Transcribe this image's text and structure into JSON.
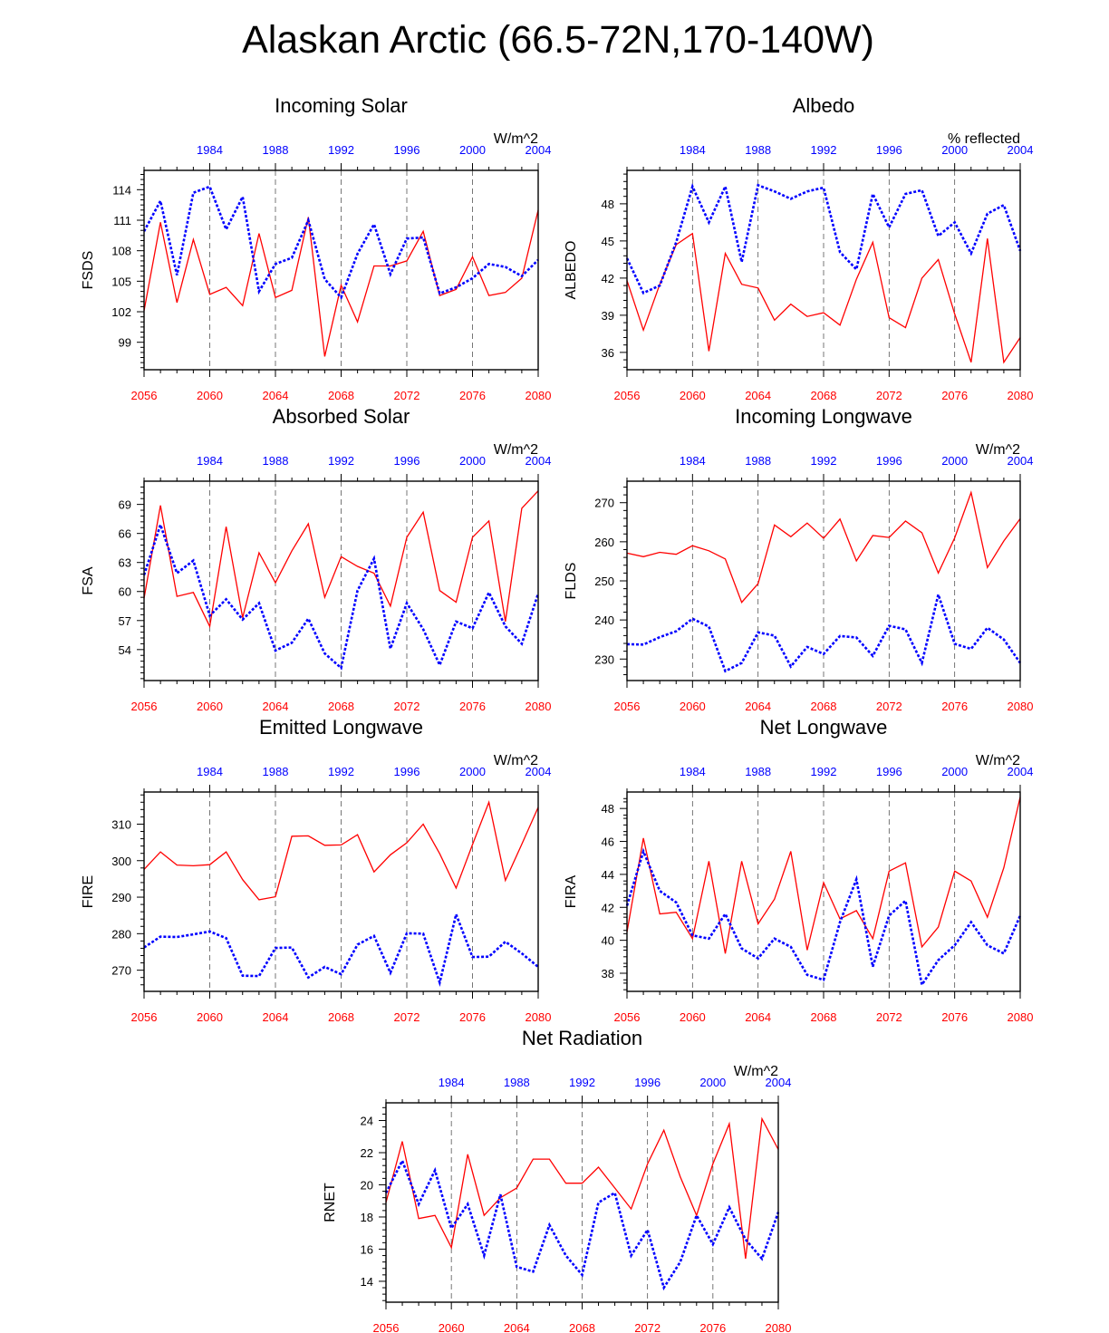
{
  "page": {
    "title": "Alaskan Arctic (66.5-72N,170-140W)"
  },
  "colors": {
    "model_line": "#ff0000",
    "obs_line": "#0000ff",
    "axis": "#000000"
  },
  "chart_data": [
    {
      "type": "line",
      "id": "fsds",
      "title": "Incoming Solar",
      "ylabel": "FSDS",
      "units": "W/m^2",
      "ylim": [
        96.3,
        115.9
      ],
      "yticks": [
        99,
        102,
        105,
        108,
        111,
        114
      ],
      "yminor": [
        96.5,
        97,
        97.5,
        98,
        98.5,
        99.5,
        100,
        100.5,
        101,
        101.5,
        102.5,
        103,
        103.5,
        104,
        104.5,
        105.5,
        106,
        106.5,
        107,
        107.5,
        108.5,
        109,
        109.5,
        110,
        110.5,
        111.5,
        112,
        112.5,
        113,
        113.5,
        114.5,
        115,
        115.5
      ],
      "x_bottom": {
        "range": [
          2056,
          2080
        ],
        "ticks": [
          2056,
          2060,
          2064,
          2068,
          2072,
          2076,
          2080
        ]
      },
      "x_top": {
        "range": [
          1980,
          2004
        ],
        "ticks": [
          1984,
          1988,
          1992,
          1996,
          2000,
          2004
        ]
      },
      "series": [
        {
          "values": [
            102.1,
            110.8,
            102.9,
            109.1,
            103.7,
            104.4,
            102.6,
            109.7,
            103.4,
            104.1,
            111.3,
            97.6,
            104.6,
            101.0,
            106.5,
            106.5,
            107.0,
            109.9,
            103.6,
            104.2,
            107.4,
            103.6,
            103.9,
            105.3,
            112.0
          ]
        },
        {
          "values": [
            109.9,
            112.9,
            105.6,
            113.7,
            114.3,
            110.1,
            113.3,
            104.0,
            106.7,
            107.3,
            111.0,
            105.2,
            103.4,
            107.7,
            110.6,
            105.7,
            109.2,
            109.3,
            103.8,
            104.4,
            105.3,
            106.7,
            106.4,
            105.5,
            107.1
          ]
        }
      ]
    },
    {
      "type": "line",
      "id": "albedo",
      "title": "Albedo",
      "ylabel": "ALBEDO",
      "units": "% reflected",
      "ylim": [
        34.6,
        50.7
      ],
      "yticks": [
        36.0,
        39.0,
        42.0,
        45.0,
        48.0
      ],
      "yminor": [
        34.8,
        35.4,
        36.6,
        37.2,
        37.8,
        38.4,
        39.6,
        40.2,
        40.8,
        41.4,
        42.6,
        43.2,
        43.8,
        44.4,
        45.6,
        46.2,
        46.8,
        47.4,
        48.6,
        49.2,
        49.8,
        50.4
      ],
      "x_bottom": {
        "range": [
          2056,
          2080
        ],
        "ticks": [
          2056,
          2060,
          2064,
          2068,
          2072,
          2076,
          2080
        ]
      },
      "x_top": {
        "range": [
          1980,
          2004
        ],
        "ticks": [
          1984,
          1988,
          1992,
          1996,
          2000,
          2004
        ]
      },
      "series": [
        {
          "values": [
            41.8,
            37.8,
            41.5,
            44.7,
            45.6,
            36.1,
            44.0,
            41.5,
            41.2,
            38.6,
            39.9,
            38.9,
            39.2,
            38.2,
            41.9,
            44.9,
            38.8,
            38.0,
            42.0,
            43.5,
            39.1,
            35.2,
            45.2,
            35.2,
            37.2
          ]
        },
        {
          "values": [
            43.6,
            40.8,
            41.4,
            44.9,
            49.4,
            46.5,
            49.4,
            43.3,
            49.5,
            49.0,
            48.4,
            49.0,
            49.3,
            44.1,
            42.7,
            48.8,
            46.1,
            48.8,
            49.1,
            45.4,
            46.5,
            44.0,
            47.2,
            47.9,
            44.2
          ]
        }
      ]
    },
    {
      "type": "line",
      "id": "fsa",
      "title": "Absorbed Solar",
      "ylabel": "FSA",
      "units": "W/m^2",
      "ylim": [
        50.8,
        71.4
      ],
      "yticks": [
        54.0,
        57.0,
        60.0,
        63.0,
        66.0,
        69.0
      ],
      "yminor": [
        51.0,
        51.6,
        52.2,
        52.8,
        53.4,
        54.6,
        55.2,
        55.8,
        56.4,
        57.6,
        58.2,
        58.8,
        59.4,
        60.6,
        61.2,
        61.8,
        62.4,
        63.6,
        64.2,
        64.8,
        65.4,
        66.6,
        67.2,
        67.8,
        68.4,
        69.6,
        70.2,
        70.8
      ],
      "x_bottom": {
        "range": [
          2056,
          2080
        ],
        "ticks": [
          2056,
          2060,
          2064,
          2068,
          2072,
          2076,
          2080
        ]
      },
      "x_top": {
        "range": [
          1980,
          2004
        ],
        "ticks": [
          1984,
          1988,
          1992,
          1996,
          2000,
          2004
        ]
      },
      "series": [
        {
          "values": [
            59.3,
            68.9,
            59.5,
            59.9,
            56.4,
            66.7,
            57.3,
            64.0,
            60.9,
            64.2,
            67.0,
            59.4,
            63.6,
            62.6,
            61.9,
            58.5,
            65.6,
            68.2,
            60.1,
            58.9,
            65.6,
            67.3,
            56.9,
            68.6,
            70.4
          ]
        },
        {
          "values": [
            61.7,
            66.9,
            61.9,
            63.2,
            57.5,
            59.2,
            57.1,
            58.8,
            53.9,
            54.7,
            57.2,
            53.6,
            52.1,
            60.1,
            63.4,
            54.1,
            58.8,
            56.1,
            52.4,
            56.9,
            56.2,
            59.9,
            56.4,
            54.6,
            59.8
          ]
        }
      ]
    },
    {
      "type": "line",
      "id": "flds",
      "title": "Incoming Longwave",
      "ylabel": "FLDS",
      "units": "W/m^2",
      "ylim": [
        224.5,
        275.5
      ],
      "yticks": [
        230,
        240,
        250,
        260,
        270
      ],
      "yminor": [
        226,
        228,
        232,
        234,
        236,
        238,
        242,
        244,
        246,
        248,
        252,
        254,
        256,
        258,
        262,
        264,
        266,
        268,
        272,
        274
      ],
      "x_bottom": {
        "range": [
          2056,
          2080
        ],
        "ticks": [
          2056,
          2060,
          2064,
          2068,
          2072,
          2076,
          2080
        ]
      },
      "x_top": {
        "range": [
          1980,
          2004
        ],
        "ticks": [
          1984,
          1988,
          1992,
          1996,
          2000,
          2004
        ]
      },
      "series": [
        {
          "values": [
            257.1,
            256.2,
            257.3,
            256.8,
            259.0,
            257.7,
            255.6,
            244.5,
            249.3,
            264.3,
            261.3,
            264.8,
            260.9,
            265.8,
            255.1,
            261.6,
            261.1,
            265.3,
            262.3,
            252.0,
            261.0,
            272.6,
            253.4,
            260.2,
            265.9
          ]
        },
        {
          "values": [
            233.8,
            233.7,
            235.6,
            237.1,
            240.3,
            238.3,
            226.9,
            229.0,
            236.8,
            236.0,
            228.1,
            233.1,
            231.3,
            235.9,
            235.5,
            230.8,
            238.5,
            237.6,
            229.0,
            246.5,
            233.9,
            232.6,
            238.0,
            235.0,
            229.0
          ]
        }
      ]
    },
    {
      "type": "line",
      "id": "fire",
      "title": "Emitted Longwave",
      "ylabel": "FIRE",
      "units": "W/m^2",
      "ylim": [
        264.2,
        318.8
      ],
      "yticks": [
        270,
        280,
        290,
        300,
        310
      ],
      "yminor": [
        264,
        266,
        268,
        272,
        274,
        276,
        278,
        282,
        284,
        286,
        288,
        292,
        294,
        296,
        298,
        302,
        304,
        306,
        308,
        312,
        314,
        316,
        318
      ],
      "x_bottom": {
        "range": [
          2056,
          2080
        ],
        "ticks": [
          2056,
          2060,
          2064,
          2068,
          2072,
          2076,
          2080
        ]
      },
      "x_top": {
        "range": [
          1980,
          2004
        ],
        "ticks": [
          1984,
          1988,
          1992,
          1996,
          2000,
          2004
        ]
      },
      "series": [
        {
          "values": [
            297.6,
            302.4,
            298.8,
            298.6,
            298.9,
            302.4,
            294.8,
            289.3,
            290.1,
            306.7,
            306.8,
            304.2,
            304.3,
            307.1,
            296.9,
            301.6,
            304.9,
            310.0,
            301.9,
            292.5,
            304.4,
            316.0,
            294.6,
            304.5,
            314.6
          ]
        },
        {
          "values": [
            276.2,
            279.2,
            279.1,
            279.8,
            280.6,
            278.8,
            268.5,
            268.4,
            276.1,
            276.2,
            268.0,
            270.9,
            268.9,
            277.0,
            279.4,
            269.3,
            280.1,
            280.0,
            266.6,
            285.3,
            273.6,
            273.7,
            277.8,
            274.6,
            270.9
          ]
        }
      ]
    },
    {
      "type": "line",
      "id": "fira",
      "title": "Net Longwave",
      "ylabel": "FIRA",
      "units": "W/m^2",
      "ylim": [
        36.9,
        49.0
      ],
      "yticks": [
        38.0,
        40.0,
        42.0,
        44.0,
        46.0,
        48.0
      ],
      "yminor": [
        37.0,
        37.4,
        37.6,
        38.4,
        38.6,
        39.0,
        39.4,
        39.6,
        40.4,
        40.6,
        41.0,
        41.4,
        41.6,
        42.4,
        42.6,
        43.0,
        43.4,
        43.6,
        44.4,
        44.6,
        45.0,
        45.4,
        45.6,
        46.4,
        46.6,
        47.0,
        47.4,
        47.6,
        48.4,
        48.6
      ],
      "x_bottom": {
        "range": [
          2056,
          2080
        ],
        "ticks": [
          2056,
          2060,
          2064,
          2068,
          2072,
          2076,
          2080
        ]
      },
      "x_top": {
        "range": [
          1980,
          2004
        ],
        "ticks": [
          1984,
          1988,
          1992,
          1996,
          2000,
          2004
        ]
      },
      "series": [
        {
          "values": [
            40.5,
            46.2,
            41.6,
            41.7,
            40.1,
            44.8,
            39.2,
            44.8,
            41.0,
            42.5,
            45.4,
            39.4,
            43.5,
            41.3,
            41.8,
            40.1,
            44.2,
            44.7,
            39.6,
            40.8,
            44.2,
            43.6,
            41.4,
            44.4,
            48.7
          ]
        },
        {
          "values": [
            42.1,
            45.4,
            43.0,
            42.3,
            40.3,
            40.1,
            41.6,
            39.5,
            38.9,
            40.1,
            39.6,
            37.9,
            37.6,
            41.1,
            43.7,
            38.4,
            41.5,
            42.4,
            37.3,
            38.8,
            39.7,
            41.1,
            39.7,
            39.2,
            41.5
          ]
        }
      ]
    },
    {
      "type": "line",
      "id": "rnet",
      "title": "Net Radiation",
      "ylabel": "RNET",
      "units": "W/m^2",
      "ylim": [
        12.7,
        25.1
      ],
      "yticks": [
        14.0,
        16.0,
        18.0,
        20.0,
        22.0,
        24.0
      ],
      "yminor": [
        12.8,
        13.2,
        13.6,
        14.4,
        14.8,
        15.2,
        15.6,
        16.4,
        16.8,
        17.2,
        17.6,
        18.4,
        18.8,
        19.2,
        19.6,
        20.4,
        20.8,
        21.2,
        21.6,
        22.4,
        22.8,
        23.2,
        23.6,
        24.4,
        24.8
      ],
      "x_bottom": {
        "range": [
          2056,
          2080
        ],
        "ticks": [
          2056,
          2060,
          2064,
          2068,
          2072,
          2076,
          2080
        ]
      },
      "x_top": {
        "range": [
          1980,
          2004
        ],
        "ticks": [
          1984,
          1988,
          1992,
          1996,
          2000,
          2004
        ]
      },
      "series": [
        {
          "values": [
            18.9,
            22.7,
            17.9,
            18.1,
            16.1,
            21.9,
            18.1,
            19.2,
            19.8,
            21.6,
            21.6,
            20.1,
            20.1,
            21.1,
            19.8,
            18.5,
            21.3,
            23.4,
            20.5,
            18.1,
            21.3,
            23.8,
            15.4,
            24.1,
            22.2
          ]
        },
        {
          "values": [
            19.5,
            21.5,
            18.8,
            20.9,
            17.3,
            18.8,
            15.6,
            19.4,
            14.9,
            14.6,
            17.5,
            15.6,
            14.4,
            18.9,
            19.5,
            15.6,
            17.2,
            13.6,
            15.2,
            18.1,
            16.3,
            18.6,
            16.6,
            15.4,
            18.3
          ]
        }
      ]
    }
  ]
}
